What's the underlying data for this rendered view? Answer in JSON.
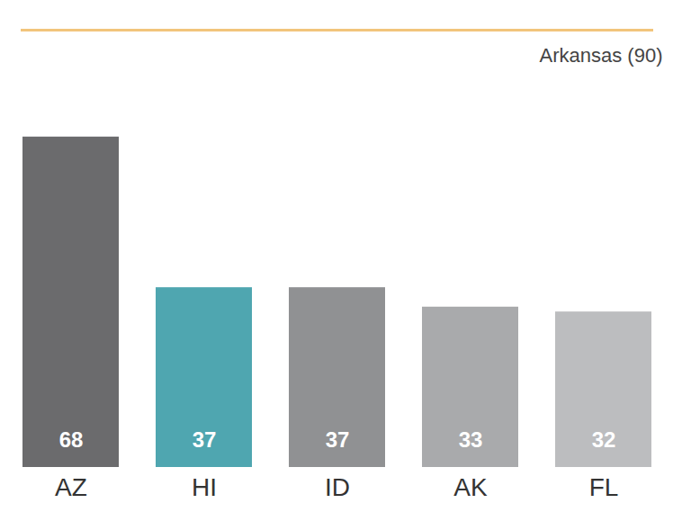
{
  "chart_data": {
    "type": "bar",
    "categories": [
      "AZ",
      "HI",
      "ID",
      "AK",
      "FL"
    ],
    "values": [
      68,
      37,
      37,
      33,
      32
    ],
    "colors": [
      "#6b6b6d",
      "#4fa6b0",
      "#909193",
      "#a9aaac",
      "#bcbdbf"
    ],
    "ylim": [
      0,
      90
    ],
    "data_labels": true,
    "tick_labels": "x",
    "grid": false,
    "annotations": [
      {
        "text": "Arkansas (90)",
        "y": 90,
        "color": "#f2c57c"
      }
    ]
  }
}
